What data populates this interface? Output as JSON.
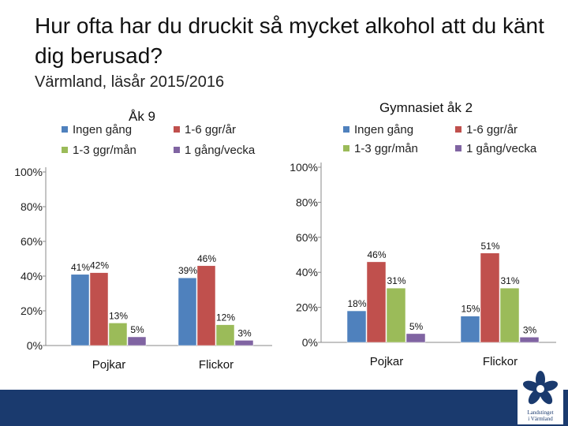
{
  "page": {
    "title": "Hur ofta har du druckit så mycket alkohol att du känt dig berusad?",
    "subtitle": "Värmland, läsår 2015/2016"
  },
  "series_colors": [
    "#4f81bd",
    "#c0504d",
    "#9bbb59",
    "#8064a2"
  ],
  "chart_data": [
    {
      "type": "bar",
      "title": "Åk 9",
      "categories": [
        "Pojkar",
        "Flickor"
      ],
      "series": [
        {
          "name": "Ingen gång",
          "values": [
            41,
            39
          ]
        },
        {
          "name": "1-6 ggr/år",
          "values": [
            42,
            46
          ]
        },
        {
          "name": "1-3 ggr/mån",
          "values": [
            13,
            12
          ]
        },
        {
          "name": "1 gång/vecka",
          "values": [
            5,
            3
          ]
        }
      ],
      "ylim": [
        0,
        100
      ],
      "yticks": [
        "0%",
        "20%",
        "40%",
        "60%",
        "80%",
        "100%"
      ],
      "xlabel": "",
      "ylabel": "",
      "legend": "top",
      "grid": false
    },
    {
      "type": "bar",
      "title": "Gymnasiet åk 2",
      "categories": [
        "Pojkar",
        "Flickor"
      ],
      "series": [
        {
          "name": "Ingen gång",
          "values": [
            18,
            15
          ]
        },
        {
          "name": "1-6 ggr/år",
          "values": [
            46,
            51
          ]
        },
        {
          "name": "1-3 ggr/mån",
          "values": [
            31,
            31
          ]
        },
        {
          "name": "1 gång/vecka",
          "values": [
            5,
            3
          ]
        }
      ],
      "ylim": [
        0,
        100
      ],
      "yticks": [
        "0%",
        "20%",
        "40%",
        "60%",
        "80%",
        "100%"
      ],
      "xlabel": "",
      "ylabel": "",
      "legend": "top",
      "grid": false
    }
  ],
  "logo": {
    "line1": "Landstinget",
    "line2": "i Värmland"
  }
}
